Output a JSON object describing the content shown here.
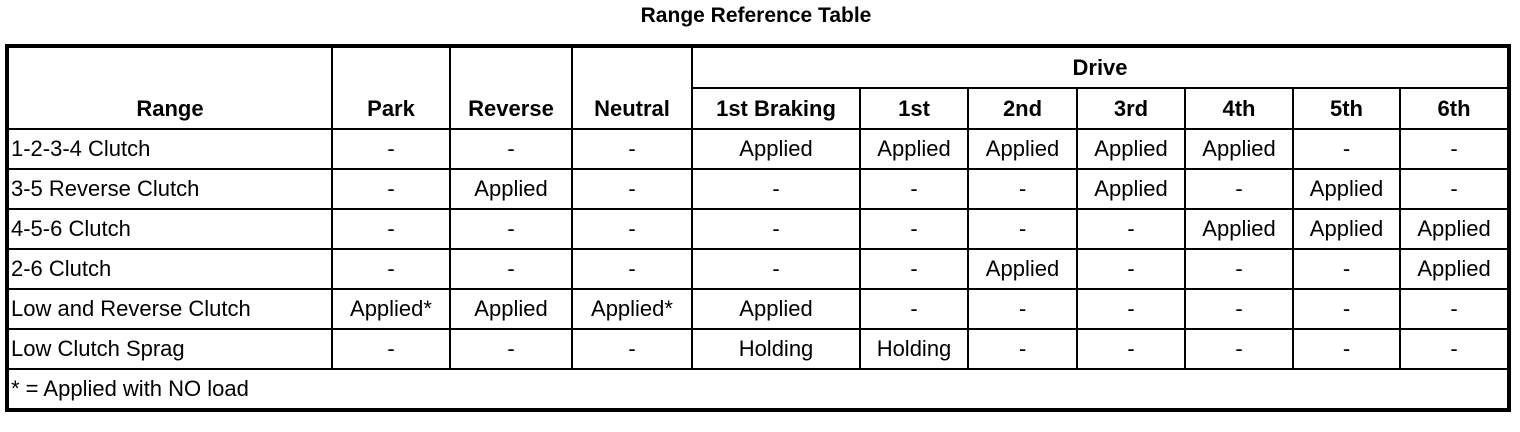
{
  "title": "Range Reference Table",
  "header": {
    "group_label": "Drive",
    "columns": [
      "Range",
      "Park",
      "Reverse",
      "Neutral",
      "1st Braking",
      "1st",
      "2nd",
      "3rd",
      "4th",
      "5th",
      "6th"
    ]
  },
  "rows": [
    [
      "1-2-3-4 Clutch",
      "-",
      "-",
      "-",
      "Applied",
      "Applied",
      "Applied",
      "Applied",
      "Applied",
      "-",
      "-"
    ],
    [
      "3-5 Reverse Clutch",
      "-",
      "Applied",
      "-",
      "-",
      "-",
      "-",
      "Applied",
      "-",
      "Applied",
      "-"
    ],
    [
      "4-5-6 Clutch",
      "-",
      "-",
      "-",
      "-",
      "-",
      "-",
      "-",
      "Applied",
      "Applied",
      "Applied"
    ],
    [
      "2-6 Clutch",
      "-",
      "-",
      "-",
      "-",
      "-",
      "Applied",
      "-",
      "-",
      "-",
      "Applied"
    ],
    [
      "Low and Reverse Clutch",
      "Applied*",
      "Applied",
      "Applied*",
      "Applied",
      "-",
      "-",
      "-",
      "-",
      "-",
      "-"
    ],
    [
      "Low Clutch Sprag",
      "-",
      "-",
      "-",
      "Holding",
      "Holding",
      "-",
      "-",
      "-",
      "-",
      "-"
    ]
  ],
  "footnote": "* = Applied with NO load"
}
